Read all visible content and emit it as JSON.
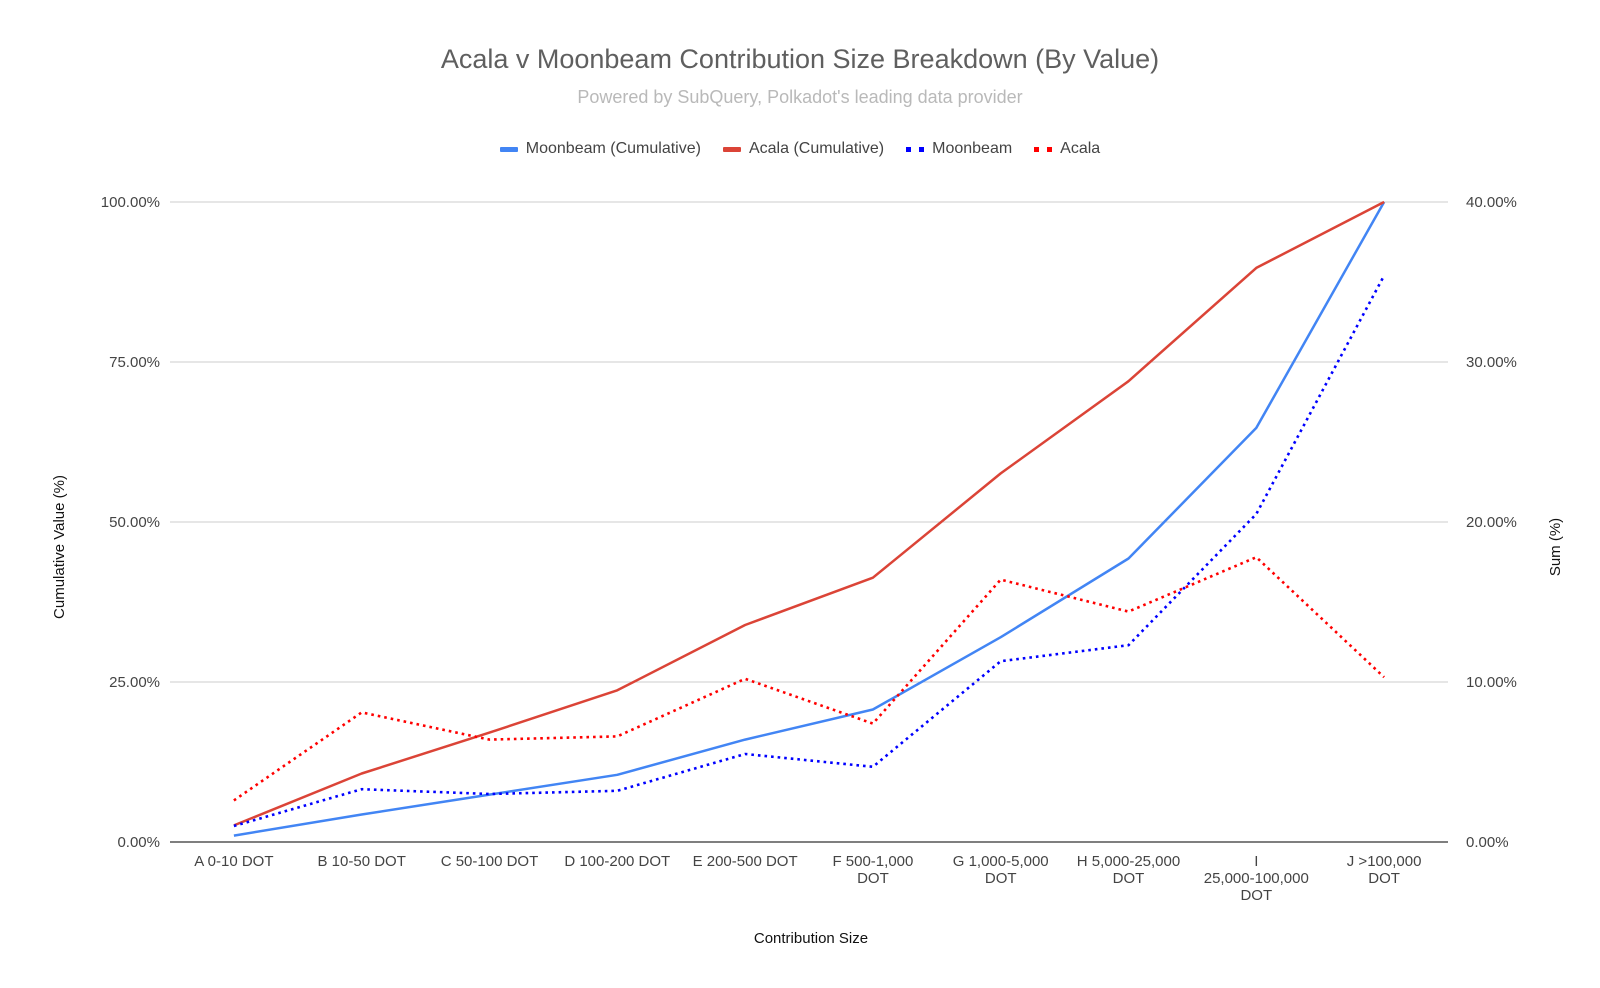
{
  "chart_data": {
    "type": "line",
    "title": "Acala v Moonbeam Contribution Size Breakdown (By Value)",
    "subtitle": "Powered by SubQuery, Polkadot's leading data provider",
    "xlabel": "Contribution Size",
    "ylabel_left": "Cumulative Value (%)",
    "ylabel_right": "Sum (%)",
    "categories": [
      [
        "A 0-10 DOT"
      ],
      [
        "B 10-50 DOT"
      ],
      [
        "C 50-100 DOT"
      ],
      [
        "D 100-200 DOT"
      ],
      [
        "E 200-500 DOT"
      ],
      [
        "F 500-1,000",
        "DOT"
      ],
      [
        "G 1,000-5,000",
        "DOT"
      ],
      [
        "H 5,000-25,000",
        "DOT"
      ],
      [
        "I",
        "25,000-100,000",
        "DOT"
      ],
      [
        "J >100,000",
        "DOT"
      ]
    ],
    "y_left": {
      "ylim": [
        0,
        100
      ],
      "ticks": [
        "0.00%",
        "25.00%",
        "50.00%",
        "75.00%",
        "100.00%"
      ]
    },
    "y_right": {
      "ylim": [
        0,
        40
      ],
      "ticks": [
        "0.00%",
        "10.00%",
        "20.00%",
        "30.00%",
        "40.00%"
      ]
    },
    "grid": true,
    "legend_position": "top",
    "series": [
      {
        "name": "Moonbeam (Cumulative)",
        "axis": "left",
        "style": "solid",
        "color": "#4285f4",
        "values": [
          1.0,
          4.3,
          7.4,
          10.5,
          16.0,
          20.7,
          32.0,
          44.3,
          64.7,
          100.0
        ]
      },
      {
        "name": "Acala (Cumulative)",
        "axis": "left",
        "style": "solid",
        "color": "#db4437",
        "values": [
          2.6,
          10.7,
          17.1,
          23.7,
          33.9,
          41.3,
          57.6,
          72.0,
          89.7,
          100.0
        ]
      },
      {
        "name": "Moonbeam",
        "axis": "right",
        "style": "dotted",
        "color": "#0000ff",
        "values": [
          1.0,
          3.3,
          3.0,
          3.2,
          5.5,
          4.7,
          11.3,
          12.3,
          20.5,
          35.4
        ]
      },
      {
        "name": "Acala",
        "axis": "right",
        "style": "dotted",
        "color": "#ff0000",
        "values": [
          2.6,
          8.1,
          6.4,
          6.6,
          10.2,
          7.4,
          16.4,
          14.4,
          17.8,
          10.3
        ]
      }
    ]
  }
}
